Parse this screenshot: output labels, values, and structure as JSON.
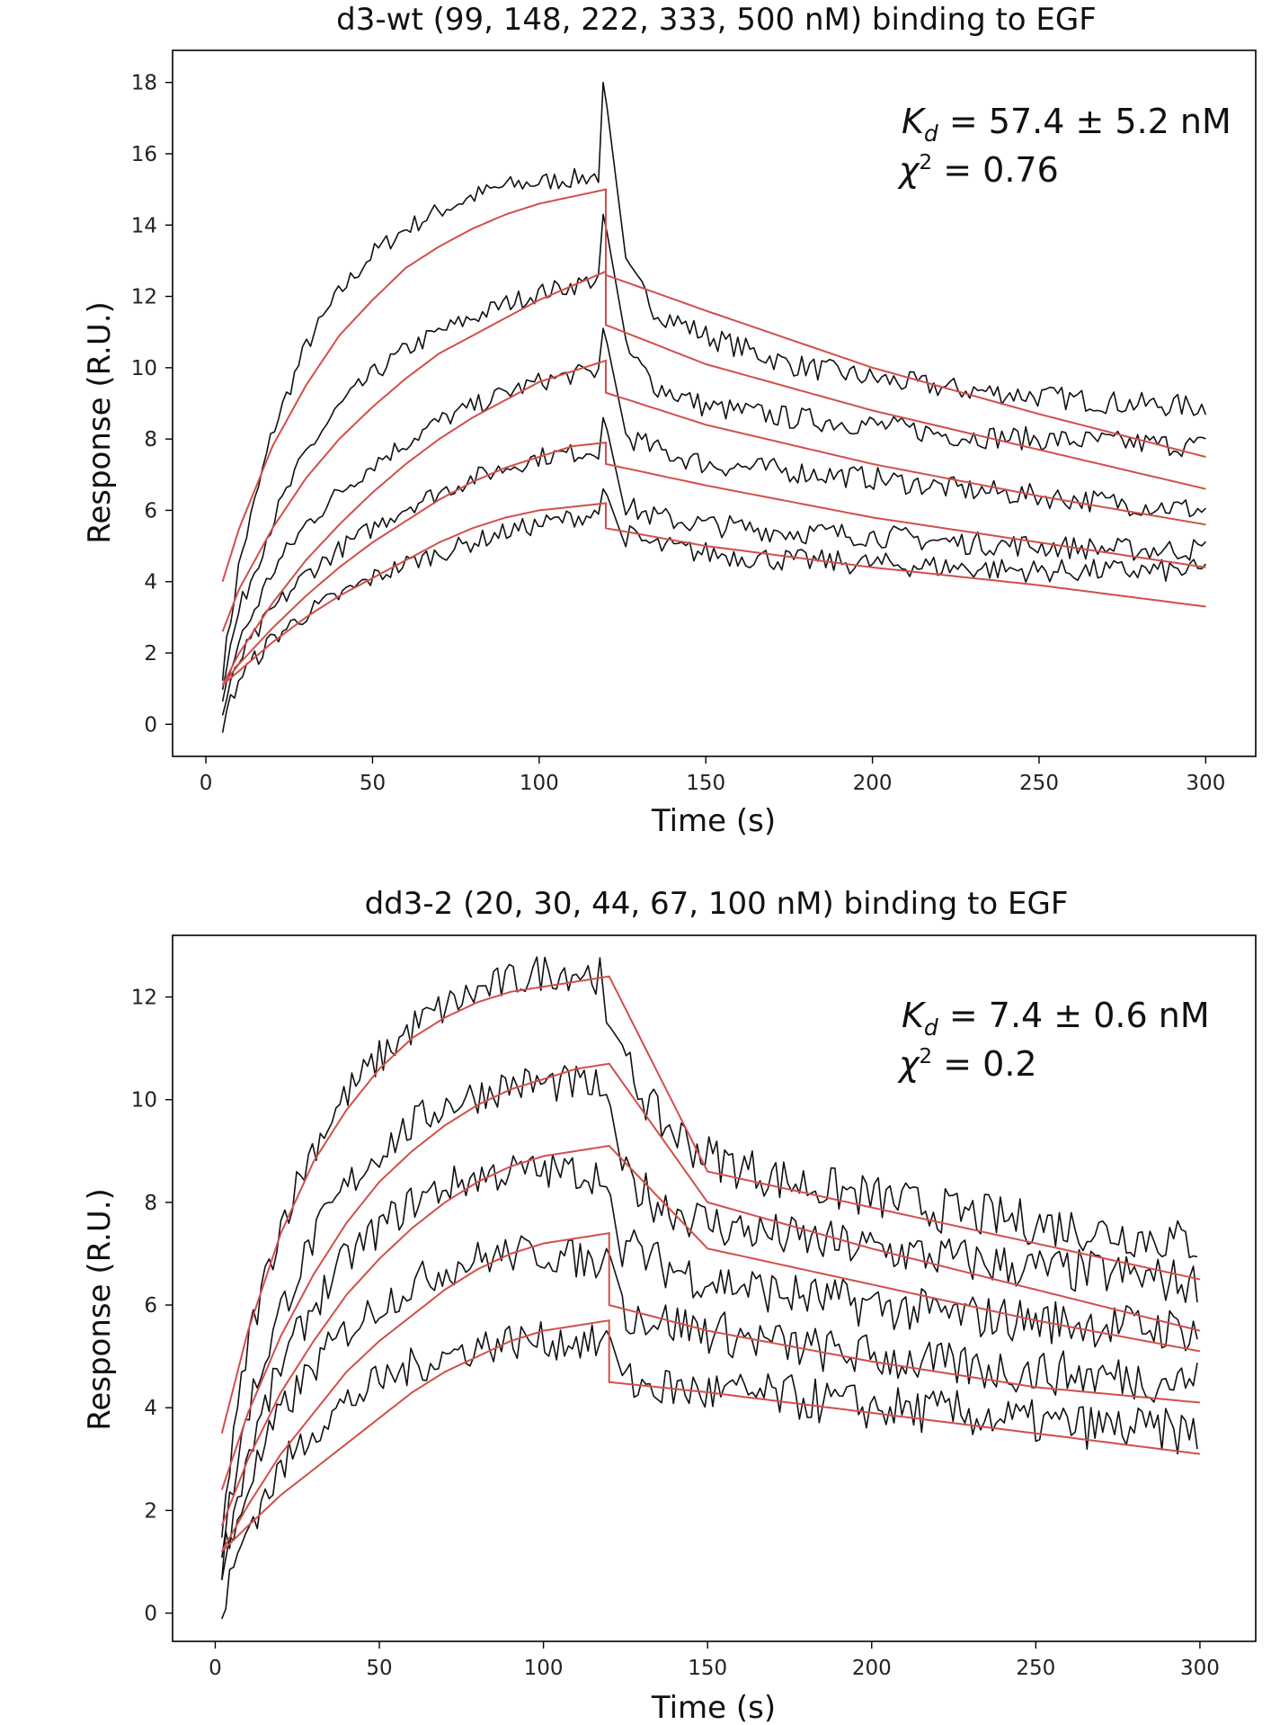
{
  "chart_data": [
    {
      "type": "line",
      "title": "d3-wt (99, 148, 222, 333, 500 nM) binding to EGF",
      "xlabel": "Time (s)",
      "ylabel": "Response (R.U.)",
      "xlim": [
        -10,
        315
      ],
      "ylim": [
        -0.9,
        18.9
      ],
      "xticks": [
        0,
        50,
        100,
        150,
        200,
        250,
        300
      ],
      "yticks": [
        0,
        2,
        4,
        6,
        8,
        10,
        12,
        14,
        16,
        18
      ],
      "grid": false,
      "legend": "none",
      "colors": {
        "data": "#111111",
        "fit": "#d0504b"
      },
      "annotation": {
        "kd_symbol": "K",
        "kd_sub": "d",
        "kd_value": " = 57.4 ± 5.2 nM",
        "chi_symbol": "χ",
        "chi_sup": "2",
        "chi_value": " = 0.76"
      },
      "series": [
        {
          "role": "data",
          "peak_after_injection": 18.0,
          "x": [
            5,
            10,
            20,
            30,
            40,
            50,
            60,
            70,
            80,
            90,
            100,
            110,
            118
          ],
          "y": [
            1.5,
            4.5,
            8.2,
            10.6,
            12.1,
            13.2,
            13.9,
            14.4,
            14.8,
            15.1,
            15.2,
            15.3,
            15.4
          ],
          "x2": [
            126,
            135,
            150,
            175,
            200,
            225,
            250,
            275,
            300
          ],
          "y2": [
            12.8,
            11.6,
            10.9,
            10.1,
            9.7,
            9.4,
            9.2,
            9.0,
            8.9
          ]
        },
        {
          "role": "data",
          "peak_after_injection": 14.3,
          "x": [
            5,
            10,
            20,
            30,
            40,
            50,
            60,
            70,
            80,
            90,
            100,
            110,
            118
          ],
          "y": [
            1.2,
            3.2,
            5.7,
            7.6,
            8.9,
            9.8,
            10.5,
            11.0,
            11.4,
            11.8,
            12.1,
            12.3,
            12.5
          ],
          "x2": [
            126,
            135,
            150,
            175,
            200,
            225,
            250,
            275,
            300
          ],
          "y2": [
            10.5,
            9.5,
            8.9,
            8.6,
            8.4,
            8.1,
            8.0,
            7.9,
            7.8
          ]
        },
        {
          "role": "data",
          "peak_after_injection": 11.1,
          "x": [
            5,
            10,
            20,
            30,
            40,
            50,
            60,
            70,
            80,
            90,
            100,
            110,
            118
          ],
          "y": [
            0.8,
            2.3,
            4.3,
            5.6,
            6.5,
            7.3,
            7.9,
            8.5,
            8.9,
            9.3,
            9.6,
            9.8,
            9.9
          ],
          "x2": [
            126,
            135,
            150,
            175,
            200,
            225,
            250,
            275,
            300
          ],
          "y2": [
            8.1,
            7.7,
            7.3,
            7.1,
            6.9,
            6.6,
            6.4,
            6.2,
            6.0
          ]
        },
        {
          "role": "data",
          "peak_after_injection": 8.6,
          "x": [
            5,
            10,
            20,
            30,
            40,
            50,
            60,
            70,
            80,
            90,
            100,
            110,
            118
          ],
          "y": [
            0.3,
            1.8,
            3.2,
            4.2,
            4.9,
            5.5,
            6.1,
            6.5,
            6.9,
            7.2,
            7.5,
            7.6,
            7.7
          ],
          "x2": [
            126,
            135,
            150,
            175,
            200,
            225,
            250,
            275,
            300
          ],
          "y2": [
            6.1,
            5.8,
            5.6,
            5.4,
            5.3,
            5.1,
            5.0,
            4.9,
            4.9
          ]
        },
        {
          "role": "data",
          "peak_after_injection": 6.6,
          "x": [
            5,
            10,
            20,
            30,
            40,
            50,
            60,
            70,
            80,
            90,
            100,
            110,
            118
          ],
          "y": [
            0.0,
            1.3,
            2.4,
            3.1,
            3.6,
            4.1,
            4.5,
            4.8,
            5.1,
            5.4,
            5.6,
            5.8,
            5.9
          ],
          "x2": [
            126,
            135,
            150,
            175,
            200,
            225,
            250,
            275,
            300
          ],
          "y2": [
            5.3,
            5.0,
            4.8,
            4.6,
            4.5,
            4.4,
            4.3,
            4.3,
            4.3
          ]
        },
        {
          "role": "fit",
          "x": [
            5,
            10,
            20,
            30,
            40,
            50,
            60,
            70,
            80,
            90,
            100,
            110,
            120
          ],
          "y": [
            4.0,
            5.5,
            7.8,
            9.5,
            10.9,
            11.9,
            12.8,
            13.4,
            13.9,
            14.3,
            14.6,
            14.8,
            15.0
          ],
          "x2": [
            120,
            150,
            200,
            250,
            300
          ],
          "y2": [
            12.6,
            11.6,
            10.0,
            8.7,
            7.5
          ]
        },
        {
          "role": "fit",
          "x": [
            5,
            10,
            20,
            30,
            40,
            50,
            60,
            70,
            80,
            90,
            100,
            110,
            120
          ],
          "y": [
            2.6,
            3.8,
            5.5,
            6.9,
            8.0,
            8.9,
            9.7,
            10.4,
            10.9,
            11.4,
            11.9,
            12.3,
            12.7
          ],
          "x2": [
            120,
            150,
            200,
            250,
            300
          ],
          "y2": [
            11.2,
            10.1,
            8.8,
            7.7,
            6.6
          ]
        },
        {
          "role": "fit",
          "x": [
            5,
            10,
            20,
            30,
            40,
            50,
            60,
            70,
            80,
            90,
            100,
            110,
            120
          ],
          "y": [
            1.1,
            2.0,
            3.4,
            4.6,
            5.6,
            6.5,
            7.3,
            8.0,
            8.6,
            9.1,
            9.6,
            9.9,
            10.2
          ],
          "x2": [
            120,
            150,
            200,
            250,
            300
          ],
          "y2": [
            9.3,
            8.4,
            7.3,
            6.4,
            5.6
          ]
        },
        {
          "role": "fit",
          "x": [
            5,
            10,
            20,
            30,
            40,
            50,
            60,
            70,
            80,
            90,
            100,
            110,
            120
          ],
          "y": [
            1.1,
            1.7,
            2.7,
            3.6,
            4.4,
            5.1,
            5.7,
            6.3,
            6.8,
            7.2,
            7.5,
            7.8,
            7.9
          ],
          "x2": [
            120,
            150,
            200,
            250,
            300
          ],
          "y2": [
            7.3,
            6.7,
            5.8,
            5.1,
            4.4
          ]
        },
        {
          "role": "fit",
          "x": [
            5,
            10,
            20,
            30,
            40,
            50,
            60,
            70,
            80,
            90,
            100,
            110,
            120
          ],
          "y": [
            1.1,
            1.5,
            2.3,
            3.0,
            3.6,
            4.1,
            4.6,
            5.1,
            5.5,
            5.8,
            6.0,
            6.1,
            6.2
          ],
          "x2": [
            120,
            150,
            200,
            250,
            300
          ],
          "y2": [
            5.5,
            5.0,
            4.4,
            3.9,
            3.3
          ]
        }
      ]
    },
    {
      "type": "line",
      "title": "dd3-2 (20, 30, 44, 67, 100 nM) binding to EGF",
      "xlabel": "Time (s)",
      "ylabel": "Response (R.U.)",
      "xlim": [
        -13,
        317
      ],
      "ylim": [
        -0.55,
        13.2
      ],
      "xticks": [
        0,
        50,
        100,
        150,
        200,
        250,
        300
      ],
      "yticks": [
        0,
        2,
        4,
        6,
        8,
        10,
        12
      ],
      "grid": false,
      "legend": "none",
      "colors": {
        "data": "#111111",
        "fit": "#d0504b"
      },
      "annotation": {
        "kd_symbol": "K",
        "kd_sub": "d",
        "kd_value": " = 7.4 ± 0.6 nM",
        "chi_symbol": "χ",
        "chi_sup": "2",
        "chi_value": " = 0.2"
      },
      "series": [
        {
          "role": "data",
          "peak_after_injection": 11.5,
          "x": [
            2,
            10,
            20,
            30,
            40,
            50,
            60,
            70,
            80,
            90,
            100,
            110,
            118
          ],
          "y": [
            1.7,
            5.3,
            7.6,
            9.1,
            10.1,
            10.8,
            11.4,
            11.8,
            12.1,
            12.3,
            12.5,
            12.5,
            12.4
          ],
          "x2": [
            124,
            135,
            150,
            175,
            200,
            225,
            250,
            275,
            300
          ],
          "y2": [
            10.8,
            9.6,
            8.9,
            8.4,
            8.1,
            7.8,
            7.6,
            7.4,
            7.2
          ]
        },
        {
          "role": "data",
          "peak_after_injection": 10.1,
          "x": [
            2,
            10,
            20,
            30,
            40,
            50,
            60,
            70,
            80,
            90,
            100,
            110,
            118
          ],
          "y": [
            1.3,
            4.0,
            5.9,
            7.3,
            8.3,
            9.0,
            9.5,
            9.9,
            10.1,
            10.3,
            10.3,
            10.3,
            10.2
          ],
          "x2": [
            124,
            135,
            150,
            175,
            200,
            225,
            250,
            275,
            300
          ],
          "y2": [
            8.5,
            8.0,
            7.6,
            7.3,
            7.1,
            6.9,
            6.7,
            6.6,
            6.4
          ]
        },
        {
          "role": "data",
          "peak_after_injection": 8.3,
          "x": [
            2,
            10,
            20,
            30,
            40,
            50,
            60,
            70,
            80,
            90,
            100,
            110,
            118
          ],
          "y": [
            1.0,
            3.1,
            4.8,
            6.0,
            6.9,
            7.5,
            8.0,
            8.3,
            8.5,
            8.6,
            8.6,
            8.6,
            8.5
          ],
          "x2": [
            124,
            135,
            150,
            175,
            200,
            225,
            250,
            275,
            300
          ],
          "y2": [
            7.2,
            6.8,
            6.5,
            6.2,
            6.0,
            5.8,
            5.7,
            5.6,
            5.5
          ]
        },
        {
          "role": "data",
          "peak_after_injection": 7.1,
          "x": [
            2,
            10,
            20,
            30,
            40,
            50,
            60,
            70,
            80,
            90,
            100,
            110,
            118
          ],
          "y": [
            0.7,
            2.5,
            3.9,
            4.8,
            5.5,
            6.0,
            6.4,
            6.7,
            6.9,
            7.0,
            7.0,
            6.9,
            6.8
          ],
          "x2": [
            124,
            135,
            150,
            175,
            200,
            225,
            250,
            275,
            300
          ],
          "y2": [
            5.9,
            5.7,
            5.5,
            5.2,
            5.0,
            4.8,
            4.7,
            4.6,
            4.5
          ]
        },
        {
          "role": "data",
          "peak_after_injection": 5.5,
          "x": [
            2,
            10,
            20,
            30,
            40,
            50,
            60,
            70,
            80,
            90,
            100,
            110,
            118
          ],
          "y": [
            0.1,
            1.7,
            2.8,
            3.6,
            4.1,
            4.5,
            4.8,
            5.0,
            5.2,
            5.3,
            5.3,
            5.3,
            5.2
          ],
          "x2": [
            124,
            135,
            150,
            175,
            200,
            225,
            250,
            275,
            300
          ],
          "y2": [
            4.5,
            4.4,
            4.3,
            4.2,
            4.0,
            3.9,
            3.7,
            3.6,
            3.5
          ]
        },
        {
          "role": "fit",
          "x": [
            2,
            10,
            20,
            30,
            40,
            50,
            60,
            70,
            80,
            90,
            100,
            110,
            120
          ],
          "y": [
            3.5,
            5.5,
            7.4,
            8.8,
            9.8,
            10.6,
            11.2,
            11.6,
            11.9,
            12.1,
            12.2,
            12.3,
            12.4
          ],
          "x2": [
            120,
            150,
            200,
            250,
            300
          ],
          "y2": [
            12.4,
            8.6,
            7.9,
            7.2,
            6.5
          ]
        },
        {
          "role": "fit",
          "x": [
            2,
            10,
            20,
            30,
            40,
            50,
            60,
            70,
            80,
            90,
            100,
            110,
            120
          ],
          "y": [
            2.4,
            3.9,
            5.4,
            6.6,
            7.6,
            8.4,
            9.0,
            9.5,
            9.9,
            10.2,
            10.4,
            10.6,
            10.7
          ],
          "x2": [
            120,
            150,
            200,
            250,
            300
          ],
          "y2": [
            10.7,
            8.0,
            7.1,
            6.3,
            5.5
          ]
        },
        {
          "role": "fit",
          "x": [
            2,
            10,
            20,
            30,
            40,
            50,
            60,
            70,
            80,
            90,
            100,
            110,
            120
          ],
          "y": [
            1.7,
            3.0,
            4.3,
            5.3,
            6.2,
            6.9,
            7.5,
            8.0,
            8.4,
            8.7,
            8.9,
            9.0,
            9.1
          ],
          "x2": [
            120,
            150,
            200,
            250,
            300
          ],
          "y2": [
            9.1,
            7.1,
            6.4,
            5.7,
            5.1
          ]
        },
        {
          "role": "fit",
          "x": [
            2,
            10,
            20,
            30,
            40,
            50,
            60,
            70,
            80,
            90,
            100,
            110,
            120
          ],
          "y": [
            1.2,
            2.1,
            3.1,
            3.9,
            4.7,
            5.3,
            5.8,
            6.3,
            6.7,
            7.0,
            7.2,
            7.3,
            7.4
          ],
          "x2": [
            120,
            150,
            200,
            250,
            300
          ],
          "y2": [
            6.0,
            5.5,
            4.9,
            4.4,
            4.1
          ]
        },
        {
          "role": "fit",
          "x": [
            2,
            10,
            20,
            30,
            40,
            50,
            60,
            70,
            80,
            90,
            100,
            110,
            120
          ],
          "y": [
            1.2,
            1.7,
            2.3,
            2.8,
            3.3,
            3.8,
            4.3,
            4.7,
            5.0,
            5.3,
            5.5,
            5.6,
            5.7
          ],
          "x2": [
            120,
            150,
            200,
            250,
            300
          ],
          "y2": [
            4.5,
            4.3,
            3.9,
            3.5,
            3.1
          ]
        }
      ]
    }
  ]
}
